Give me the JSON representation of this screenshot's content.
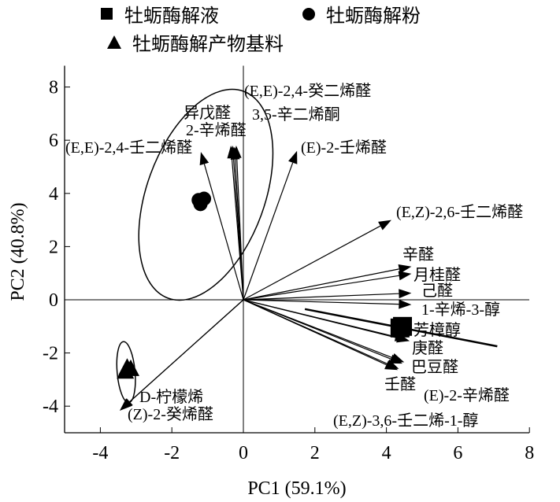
{
  "chart_data": {
    "type": "scatter",
    "subtype": "pca-biplot",
    "xlabel": "PC1 (59.1%)",
    "ylabel": "PC2 (40.8%)",
    "xlim": [
      -5,
      8
    ],
    "ylim": [
      -5,
      8.8
    ],
    "xticks": [
      -4,
      -2,
      0,
      2,
      4,
      6,
      8
    ],
    "yticks": [
      -4,
      -2,
      0,
      2,
      4,
      6,
      8
    ],
    "legend": {
      "placement": "top",
      "entries": [
        {
          "label": "牡蛎酶解液",
          "marker": "square"
        },
        {
          "label": "牡蛎酶解粉",
          "marker": "circle"
        },
        {
          "label": "牡蛎酶解产物基料",
          "marker": "triangle"
        }
      ]
    },
    "samples": [
      {
        "group": "牡蛎酶解液",
        "marker": "square",
        "points": [
          [
            4.38,
            -1.06
          ],
          [
            4.45,
            -1.0
          ]
        ]
      },
      {
        "group": "牡蛎酶解粉",
        "marker": "circle",
        "points": [
          [
            -1.2,
            3.6
          ],
          [
            -1.1,
            3.8
          ],
          [
            -1.25,
            3.75
          ]
        ]
      },
      {
        "group": "牡蛎酶解产物基料",
        "marker": "triangle",
        "points": [
          [
            -3.3,
            -2.7
          ],
          [
            -3.15,
            -2.6
          ],
          [
            -3.25,
            -2.55
          ]
        ]
      }
    ],
    "confidence_ellipses": [
      {
        "group": "牡蛎酶解粉",
        "center": [
          -1.05,
          3.95
        ],
        "rx": 1.65,
        "ry": 4.14,
        "angle_deg": 20
      },
      {
        "group": "牡蛎酶解产物基料",
        "center": [
          -3.28,
          -2.72
        ],
        "rx": 0.25,
        "ry": 1.15,
        "angle_deg": -5
      },
      {
        "group": "牡蛎酶解液",
        "line": [
          [
            1.72,
            -0.35
          ],
          [
            7.1,
            -1.75
          ]
        ]
      }
    ],
    "loadings": [
      {
        "label": "(E,E)-2,4-癸二烯醛",
        "x": -0.25,
        "y": 5.75
      },
      {
        "label": "3,5-辛二烯酮",
        "x": -0.3,
        "y": 5.8
      },
      {
        "label": "异戊醛",
        "x": -0.35,
        "y": 5.8
      },
      {
        "label": "2-辛烯醛",
        "x": -0.2,
        "y": 5.8
      },
      {
        "label": "(E,E)-2,4-壬二烯醛",
        "x": -1.19,
        "y": 5.56
      },
      {
        "label": "(E)-2-壬烯醛",
        "x": 1.5,
        "y": 5.6
      },
      {
        "label": "(E,Z)-2,6-壬二烯醛",
        "x": 4.14,
        "y": 3.0
      },
      {
        "label": "辛醛",
        "x": 4.7,
        "y": 1.25
      },
      {
        "label": "月桂醛",
        "x": 4.7,
        "y": 0.98
      },
      {
        "label": "己醛",
        "x": 4.7,
        "y": 0.25
      },
      {
        "label": "1-辛烯-3-醇",
        "x": 4.7,
        "y": -0.18
      },
      {
        "label": "芳樟醇",
        "x": 4.6,
        "y": -1.5
      },
      {
        "label": "庚醛",
        "x": 4.65,
        "y": -1.55
      },
      {
        "label": "巴豆醛",
        "x": 4.5,
        "y": -2.35
      },
      {
        "label": "壬醛",
        "x": 4.32,
        "y": -2.64
      },
      {
        "label": "(E)-2-辛烯醛",
        "x": 4.35,
        "y": -2.6
      },
      {
        "label": "(E,Z)-3,6-壬二烯-1-醇",
        "x": 4.45,
        "y": -2.4
      },
      {
        "label": "D-柠檬烯",
        "x": -3.46,
        "y": -4.17
      },
      {
        "label": "(Z)-2-癸烯醛",
        "x": -3.44,
        "y": -4.15
      }
    ]
  }
}
